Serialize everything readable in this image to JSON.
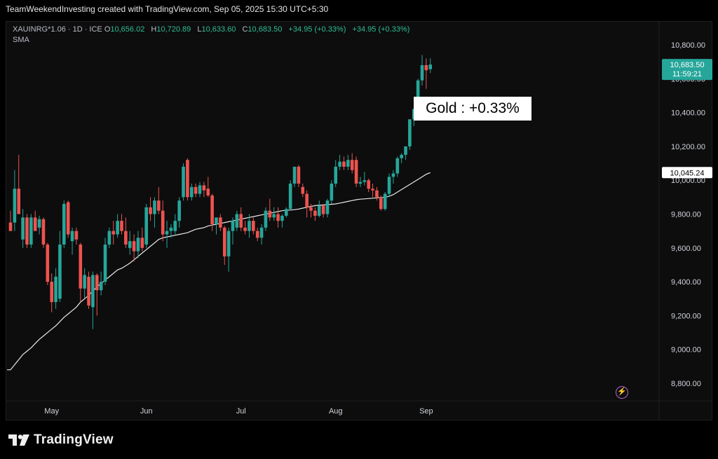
{
  "header": {
    "attribution": "TeamWeekendInvesting created with TradingView.com, Sep 05, 2025 15:30 UTC+5:30"
  },
  "legend": {
    "symbol": "XAUINRG*1.06 · 1D · ICE",
    "open_label": "O",
    "open": "10,656.02",
    "high_label": "H",
    "high": "10,720.89",
    "low_label": "L",
    "low": "10,633.60",
    "close_label": "C",
    "close": "10,683.50",
    "change1": "+34.95 (+0.33%)",
    "change2": "+34.95 (+0.33%)",
    "indicator": "SMA"
  },
  "annotation": "Gold : +0.33%",
  "price_tags": {
    "last_price": "10,683.50",
    "countdown": "11:59:21",
    "sma_value": "10,045.24"
  },
  "brand": {
    "name": "TradingView",
    "icon": "tradingview-logo-icon"
  },
  "colors": {
    "up": "#26a69a",
    "down": "#ef5350",
    "sma": "#e8e8e8",
    "price_tag": "#26a69a",
    "background": "#0d0d0d"
  },
  "chart_data": {
    "type": "candlestick",
    "ylim": [
      8700,
      10900
    ],
    "y_ticks": [
      8800,
      9000,
      9200,
      9400,
      9600,
      9800,
      10000,
      10200,
      10400,
      10600,
      10800
    ],
    "y_tick_labels": [
      "8,800.00",
      "9,000.00",
      "9,200.00",
      "9,400.00",
      "9,600.00",
      "9,800.00",
      "10,000.00",
      "10,200.00",
      "10,400.00",
      "10,600.00",
      "10,800.00"
    ],
    "x_tick_labels": [
      {
        "label": "May",
        "index": 10
      },
      {
        "label": "Jun",
        "index": 33
      },
      {
        "label": "Jul",
        "index": 56
      },
      {
        "label": "Aug",
        "index": 79
      },
      {
        "label": "Sep",
        "index": 101
      }
    ],
    "candles": [
      {
        "o": 9750,
        "h": 9820,
        "l": 9700,
        "c": 9700
      },
      {
        "o": 9750,
        "h": 10060,
        "l": 9700,
        "c": 9950
      },
      {
        "o": 9950,
        "h": 10150,
        "l": 9800,
        "c": 9800
      },
      {
        "o": 9650,
        "h": 9830,
        "l": 9600,
        "c": 9780
      },
      {
        "o": 9780,
        "h": 9800,
        "l": 9600,
        "c": 9620
      },
      {
        "o": 9620,
        "h": 9800,
        "l": 9600,
        "c": 9780
      },
      {
        "o": 9780,
        "h": 9820,
        "l": 9700,
        "c": 9700
      },
      {
        "o": 9720,
        "h": 9790,
        "l": 9680,
        "c": 9770
      },
      {
        "o": 9770,
        "h": 9780,
        "l": 9600,
        "c": 9620
      },
      {
        "o": 9620,
        "h": 9630,
        "l": 9380,
        "c": 9400
      },
      {
        "o": 9400,
        "h": 9450,
        "l": 9220,
        "c": 9280
      },
      {
        "o": 9280,
        "h": 9480,
        "l": 9240,
        "c": 9430
      },
      {
        "o": 9300,
        "h": 9700,
        "l": 9280,
        "c": 9620
      },
      {
        "o": 9620,
        "h": 9880,
        "l": 9600,
        "c": 9860
      },
      {
        "o": 9870,
        "h": 9880,
        "l": 9660,
        "c": 9680
      },
      {
        "o": 9640,
        "h": 9720,
        "l": 9560,
        "c": 9700
      },
      {
        "o": 9700,
        "h": 9720,
        "l": 9620,
        "c": 9650
      },
      {
        "o": 9620,
        "h": 9630,
        "l": 9280,
        "c": 9360
      },
      {
        "o": 9360,
        "h": 9480,
        "l": 9300,
        "c": 9440
      },
      {
        "o": 9430,
        "h": 9460,
        "l": 9240,
        "c": 9260
      },
      {
        "o": 9250,
        "h": 9460,
        "l": 9120,
        "c": 9440
      },
      {
        "o": 9440,
        "h": 9450,
        "l": 9200,
        "c": 9350
      },
      {
        "o": 9350,
        "h": 9460,
        "l": 9320,
        "c": 9400
      },
      {
        "o": 9400,
        "h": 9660,
        "l": 9380,
        "c": 9620
      },
      {
        "o": 9620,
        "h": 9720,
        "l": 9600,
        "c": 9700
      },
      {
        "o": 9700,
        "h": 9760,
        "l": 9620,
        "c": 9680
      },
      {
        "o": 9680,
        "h": 9800,
        "l": 9660,
        "c": 9760
      },
      {
        "o": 9760,
        "h": 9800,
        "l": 9680,
        "c": 9700
      },
      {
        "o": 9700,
        "h": 9780,
        "l": 9600,
        "c": 9620
      },
      {
        "o": 9600,
        "h": 9700,
        "l": 9560,
        "c": 9640
      },
      {
        "o": 9640,
        "h": 9680,
        "l": 9520,
        "c": 9580
      },
      {
        "o": 9580,
        "h": 9700,
        "l": 9540,
        "c": 9660
      },
      {
        "o": 9660,
        "h": 9720,
        "l": 9580,
        "c": 9600
      },
      {
        "o": 9620,
        "h": 9860,
        "l": 9600,
        "c": 9840
      },
      {
        "o": 9840,
        "h": 9900,
        "l": 9760,
        "c": 9800
      },
      {
        "o": 9800,
        "h": 9900,
        "l": 9720,
        "c": 9880
      },
      {
        "o": 9880,
        "h": 9960,
        "l": 9800,
        "c": 9820
      },
      {
        "o": 9820,
        "h": 9880,
        "l": 9640,
        "c": 9680
      },
      {
        "o": 9680,
        "h": 9760,
        "l": 9600,
        "c": 9700
      },
      {
        "o": 9700,
        "h": 9740,
        "l": 9660,
        "c": 9720
      },
      {
        "o": 9700,
        "h": 9800,
        "l": 9680,
        "c": 9760
      },
      {
        "o": 9760,
        "h": 9900,
        "l": 9720,
        "c": 9880
      },
      {
        "o": 9900,
        "h": 10100,
        "l": 9880,
        "c": 10080
      },
      {
        "o": 10120,
        "h": 10130,
        "l": 9880,
        "c": 9900
      },
      {
        "o": 9900,
        "h": 9980,
        "l": 9880,
        "c": 9960
      },
      {
        "o": 9960,
        "h": 9980,
        "l": 9900,
        "c": 9920
      },
      {
        "o": 9920,
        "h": 9990,
        "l": 9900,
        "c": 9970
      },
      {
        "o": 9970,
        "h": 9990,
        "l": 9900,
        "c": 9940
      },
      {
        "o": 9950,
        "h": 10020,
        "l": 9900,
        "c": 9910
      },
      {
        "o": 9910,
        "h": 9920,
        "l": 9700,
        "c": 9740
      },
      {
        "o": 9740,
        "h": 9780,
        "l": 9680,
        "c": 9780
      },
      {
        "o": 9780,
        "h": 9800,
        "l": 9700,
        "c": 9720
      },
      {
        "o": 9720,
        "h": 9730,
        "l": 9500,
        "c": 9550
      },
      {
        "o": 9550,
        "h": 9720,
        "l": 9460,
        "c": 9700
      },
      {
        "o": 9700,
        "h": 9780,
        "l": 9620,
        "c": 9760
      },
      {
        "o": 9720,
        "h": 9820,
        "l": 9700,
        "c": 9800
      },
      {
        "o": 9800,
        "h": 9840,
        "l": 9700,
        "c": 9720
      },
      {
        "o": 9720,
        "h": 9760,
        "l": 9680,
        "c": 9700
      },
      {
        "o": 9700,
        "h": 9800,
        "l": 9660,
        "c": 9760
      },
      {
        "o": 9760,
        "h": 9780,
        "l": 9680,
        "c": 9700
      },
      {
        "o": 9700,
        "h": 9720,
        "l": 9640,
        "c": 9660
      },
      {
        "o": 9660,
        "h": 9740,
        "l": 9620,
        "c": 9720
      },
      {
        "o": 9720,
        "h": 9840,
        "l": 9700,
        "c": 9820
      },
      {
        "o": 9820,
        "h": 9890,
        "l": 9760,
        "c": 9780
      },
      {
        "o": 9780,
        "h": 9840,
        "l": 9760,
        "c": 9800
      },
      {
        "o": 9800,
        "h": 9840,
        "l": 9720,
        "c": 9760
      },
      {
        "o": 9760,
        "h": 9800,
        "l": 9720,
        "c": 9790
      },
      {
        "o": 9790,
        "h": 9840,
        "l": 9780,
        "c": 9830
      },
      {
        "o": 9830,
        "h": 10000,
        "l": 9820,
        "c": 9980
      },
      {
        "o": 9980,
        "h": 10080,
        "l": 9960,
        "c": 10080
      },
      {
        "o": 10080,
        "h": 10090,
        "l": 9960,
        "c": 9980
      },
      {
        "o": 9960,
        "h": 9980,
        "l": 9900,
        "c": 9920
      },
      {
        "o": 9920,
        "h": 9940,
        "l": 9780,
        "c": 9840
      },
      {
        "o": 9840,
        "h": 9860,
        "l": 9780,
        "c": 9820
      },
      {
        "o": 9820,
        "h": 9840,
        "l": 9760,
        "c": 9790
      },
      {
        "o": 9790,
        "h": 9880,
        "l": 9780,
        "c": 9850
      },
      {
        "o": 9850,
        "h": 9860,
        "l": 9780,
        "c": 9800
      },
      {
        "o": 9800,
        "h": 9890,
        "l": 9780,
        "c": 9880
      },
      {
        "o": 9880,
        "h": 10000,
        "l": 9860,
        "c": 9980
      },
      {
        "o": 9980,
        "h": 10120,
        "l": 9960,
        "c": 10080
      },
      {
        "o": 10080,
        "h": 10150,
        "l": 10060,
        "c": 10110
      },
      {
        "o": 10110,
        "h": 10140,
        "l": 10060,
        "c": 10080
      },
      {
        "o": 10080,
        "h": 10150,
        "l": 10060,
        "c": 10120
      },
      {
        "o": 10120,
        "h": 10160,
        "l": 10040,
        "c": 10060
      },
      {
        "o": 10120,
        "h": 10140,
        "l": 9960,
        "c": 9980
      },
      {
        "o": 9980,
        "h": 10020,
        "l": 9960,
        "c": 9990
      },
      {
        "o": 9990,
        "h": 10050,
        "l": 9970,
        "c": 10000
      },
      {
        "o": 10000,
        "h": 10010,
        "l": 9930,
        "c": 9950
      },
      {
        "o": 9950,
        "h": 9980,
        "l": 9900,
        "c": 9940
      },
      {
        "o": 9940,
        "h": 9960,
        "l": 9880,
        "c": 9900
      },
      {
        "o": 9900,
        "h": 9910,
        "l": 9820,
        "c": 9830
      },
      {
        "o": 9830,
        "h": 9930,
        "l": 9820,
        "c": 9920
      },
      {
        "o": 9920,
        "h": 10040,
        "l": 9900,
        "c": 10020
      },
      {
        "o": 10020,
        "h": 10060,
        "l": 9980,
        "c": 10040
      },
      {
        "o": 10040,
        "h": 10140,
        "l": 10020,
        "c": 10130
      },
      {
        "o": 10130,
        "h": 10160,
        "l": 10100,
        "c": 10150
      },
      {
        "o": 10150,
        "h": 10200,
        "l": 10120,
        "c": 10200
      },
      {
        "o": 10200,
        "h": 10360,
        "l": 10180,
        "c": 10360
      },
      {
        "o": 10360,
        "h": 10430,
        "l": 10320,
        "c": 10420
      },
      {
        "o": 10420,
        "h": 10600,
        "l": 10400,
        "c": 10590
      },
      {
        "o": 10590,
        "h": 10740,
        "l": 10560,
        "c": 10680
      },
      {
        "o": 10680,
        "h": 10720,
        "l": 10540,
        "c": 10650
      },
      {
        "o": 10656.02,
        "h": 10720.89,
        "l": 10633.6,
        "c": 10683.5
      }
    ],
    "sma": [
      8880,
      8910,
      8940,
      8970,
      8990,
      9010,
      9035,
      9060,
      9080,
      9100,
      9120,
      9140,
      9165,
      9190,
      9210,
      9230,
      9250,
      9280,
      9300,
      9320,
      9345,
      9370,
      9390,
      9410,
      9430,
      9450,
      9470,
      9480,
      9495,
      9510,
      9530,
      9550,
      9570,
      9590,
      9610,
      9630,
      9650,
      9660,
      9665,
      9670,
      9675,
      9680,
      9685,
      9690,
      9700,
      9710,
      9715,
      9720,
      9730,
      9735,
      9740,
      9745,
      9750,
      9755,
      9760,
      9765,
      9770,
      9775,
      9780,
      9785,
      9790,
      9795,
      9800,
      9805,
      9810,
      9815,
      9820,
      9822,
      9824,
      9826,
      9830,
      9835,
      9840,
      9845,
      9850,
      9852,
      9854,
      9856,
      9858,
      9860,
      9865,
      9870,
      9875,
      9880,
      9885,
      9888,
      9890,
      9892,
      9894,
      9896,
      9898,
      9900,
      9905,
      9915,
      9930,
      9945,
      9960,
      9975,
      9990,
      10005,
      10020,
      10035,
      10045.24
    ]
  }
}
